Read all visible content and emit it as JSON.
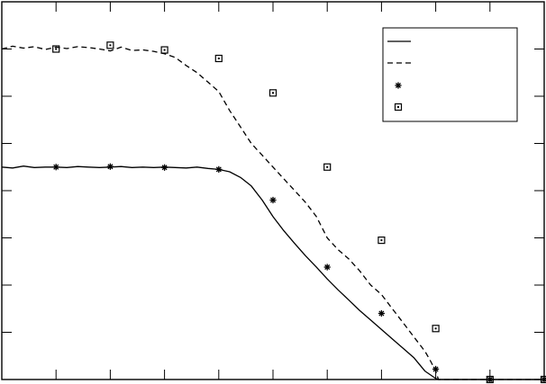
{
  "chart_data": {
    "type": "line",
    "title": "",
    "xlabel": "",
    "ylabel": "",
    "xlim": [
      0,
      10
    ],
    "ylim": [
      0,
      8
    ],
    "grid": false,
    "legend_position": "top-right",
    "series": [
      {
        "style": "solid",
        "x": [
          0,
          0.2,
          0.4,
          0.6,
          0.8,
          1.0,
          1.2,
          1.4,
          1.6,
          1.8,
          2.0,
          2.2,
          2.4,
          2.6,
          2.8,
          3.0,
          3.2,
          3.4,
          3.6,
          3.8,
          4.0,
          4.2,
          4.4,
          4.6,
          4.8,
          5.0,
          5.2,
          5.4,
          5.6,
          5.8,
          6.0,
          6.2,
          6.4,
          6.6,
          6.8,
          7.0,
          7.2,
          7.4,
          7.6,
          7.8,
          8.0,
          8.05,
          8.1,
          8.5,
          9.0,
          9.5,
          10.0
        ],
        "y": [
          4.5,
          4.48,
          4.52,
          4.49,
          4.5,
          4.5,
          4.49,
          4.51,
          4.5,
          4.49,
          4.5,
          4.51,
          4.49,
          4.5,
          4.49,
          4.5,
          4.49,
          4.48,
          4.5,
          4.47,
          4.45,
          4.4,
          4.28,
          4.1,
          3.8,
          3.45,
          3.15,
          2.88,
          2.62,
          2.38,
          2.13,
          1.9,
          1.68,
          1.46,
          1.26,
          1.06,
          0.86,
          0.66,
          0.46,
          0.18,
          0.02,
          0.0,
          0.0,
          0.0,
          0.0,
          0.0,
          0.0
        ]
      },
      {
        "style": "dashed",
        "x": [
          0,
          0.2,
          0.4,
          0.6,
          0.8,
          1.0,
          1.2,
          1.4,
          1.6,
          1.8,
          2.0,
          2.2,
          2.4,
          2.6,
          2.8,
          3.0,
          3.2,
          3.4,
          3.6,
          3.8,
          4.0,
          4.2,
          4.4,
          4.6,
          4.8,
          5.0,
          5.2,
          5.4,
          5.6,
          5.8,
          6.0,
          6.2,
          6.4,
          6.6,
          6.8,
          7.0,
          7.2,
          7.4,
          7.6,
          7.7,
          7.8,
          7.9,
          8.0,
          8.05,
          8.1,
          8.5,
          9.0,
          9.5,
          10.0
        ],
        "y": [
          7.0,
          7.06,
          7.02,
          7.05,
          6.99,
          7.04,
          7.01,
          7.05,
          7.03,
          7.0,
          6.96,
          7.04,
          6.97,
          6.98,
          6.95,
          6.9,
          6.82,
          6.65,
          6.5,
          6.3,
          6.1,
          5.7,
          5.35,
          5.0,
          4.75,
          4.5,
          4.25,
          4.0,
          3.75,
          3.45,
          3.0,
          2.75,
          2.55,
          2.3,
          2.0,
          1.8,
          1.5,
          1.2,
          0.9,
          0.75,
          0.6,
          0.4,
          0.18,
          0.0,
          0.0,
          0.0,
          0.0,
          0.0,
          0.0
        ]
      },
      {
        "style": "star-markers",
        "x": [
          1,
          2,
          3,
          4,
          5,
          6,
          7,
          8,
          9,
          10
        ],
        "y": [
          4.5,
          4.51,
          4.49,
          4.45,
          3.8,
          2.38,
          1.4,
          0.22,
          0.0,
          0.0
        ]
      },
      {
        "style": "square-markers",
        "x": [
          1,
          2,
          3,
          4,
          5,
          6,
          7,
          8,
          9,
          10
        ],
        "y": [
          7.0,
          7.08,
          6.98,
          6.8,
          6.07,
          4.5,
          2.95,
          1.08,
          0.0,
          0.0
        ]
      }
    ]
  }
}
